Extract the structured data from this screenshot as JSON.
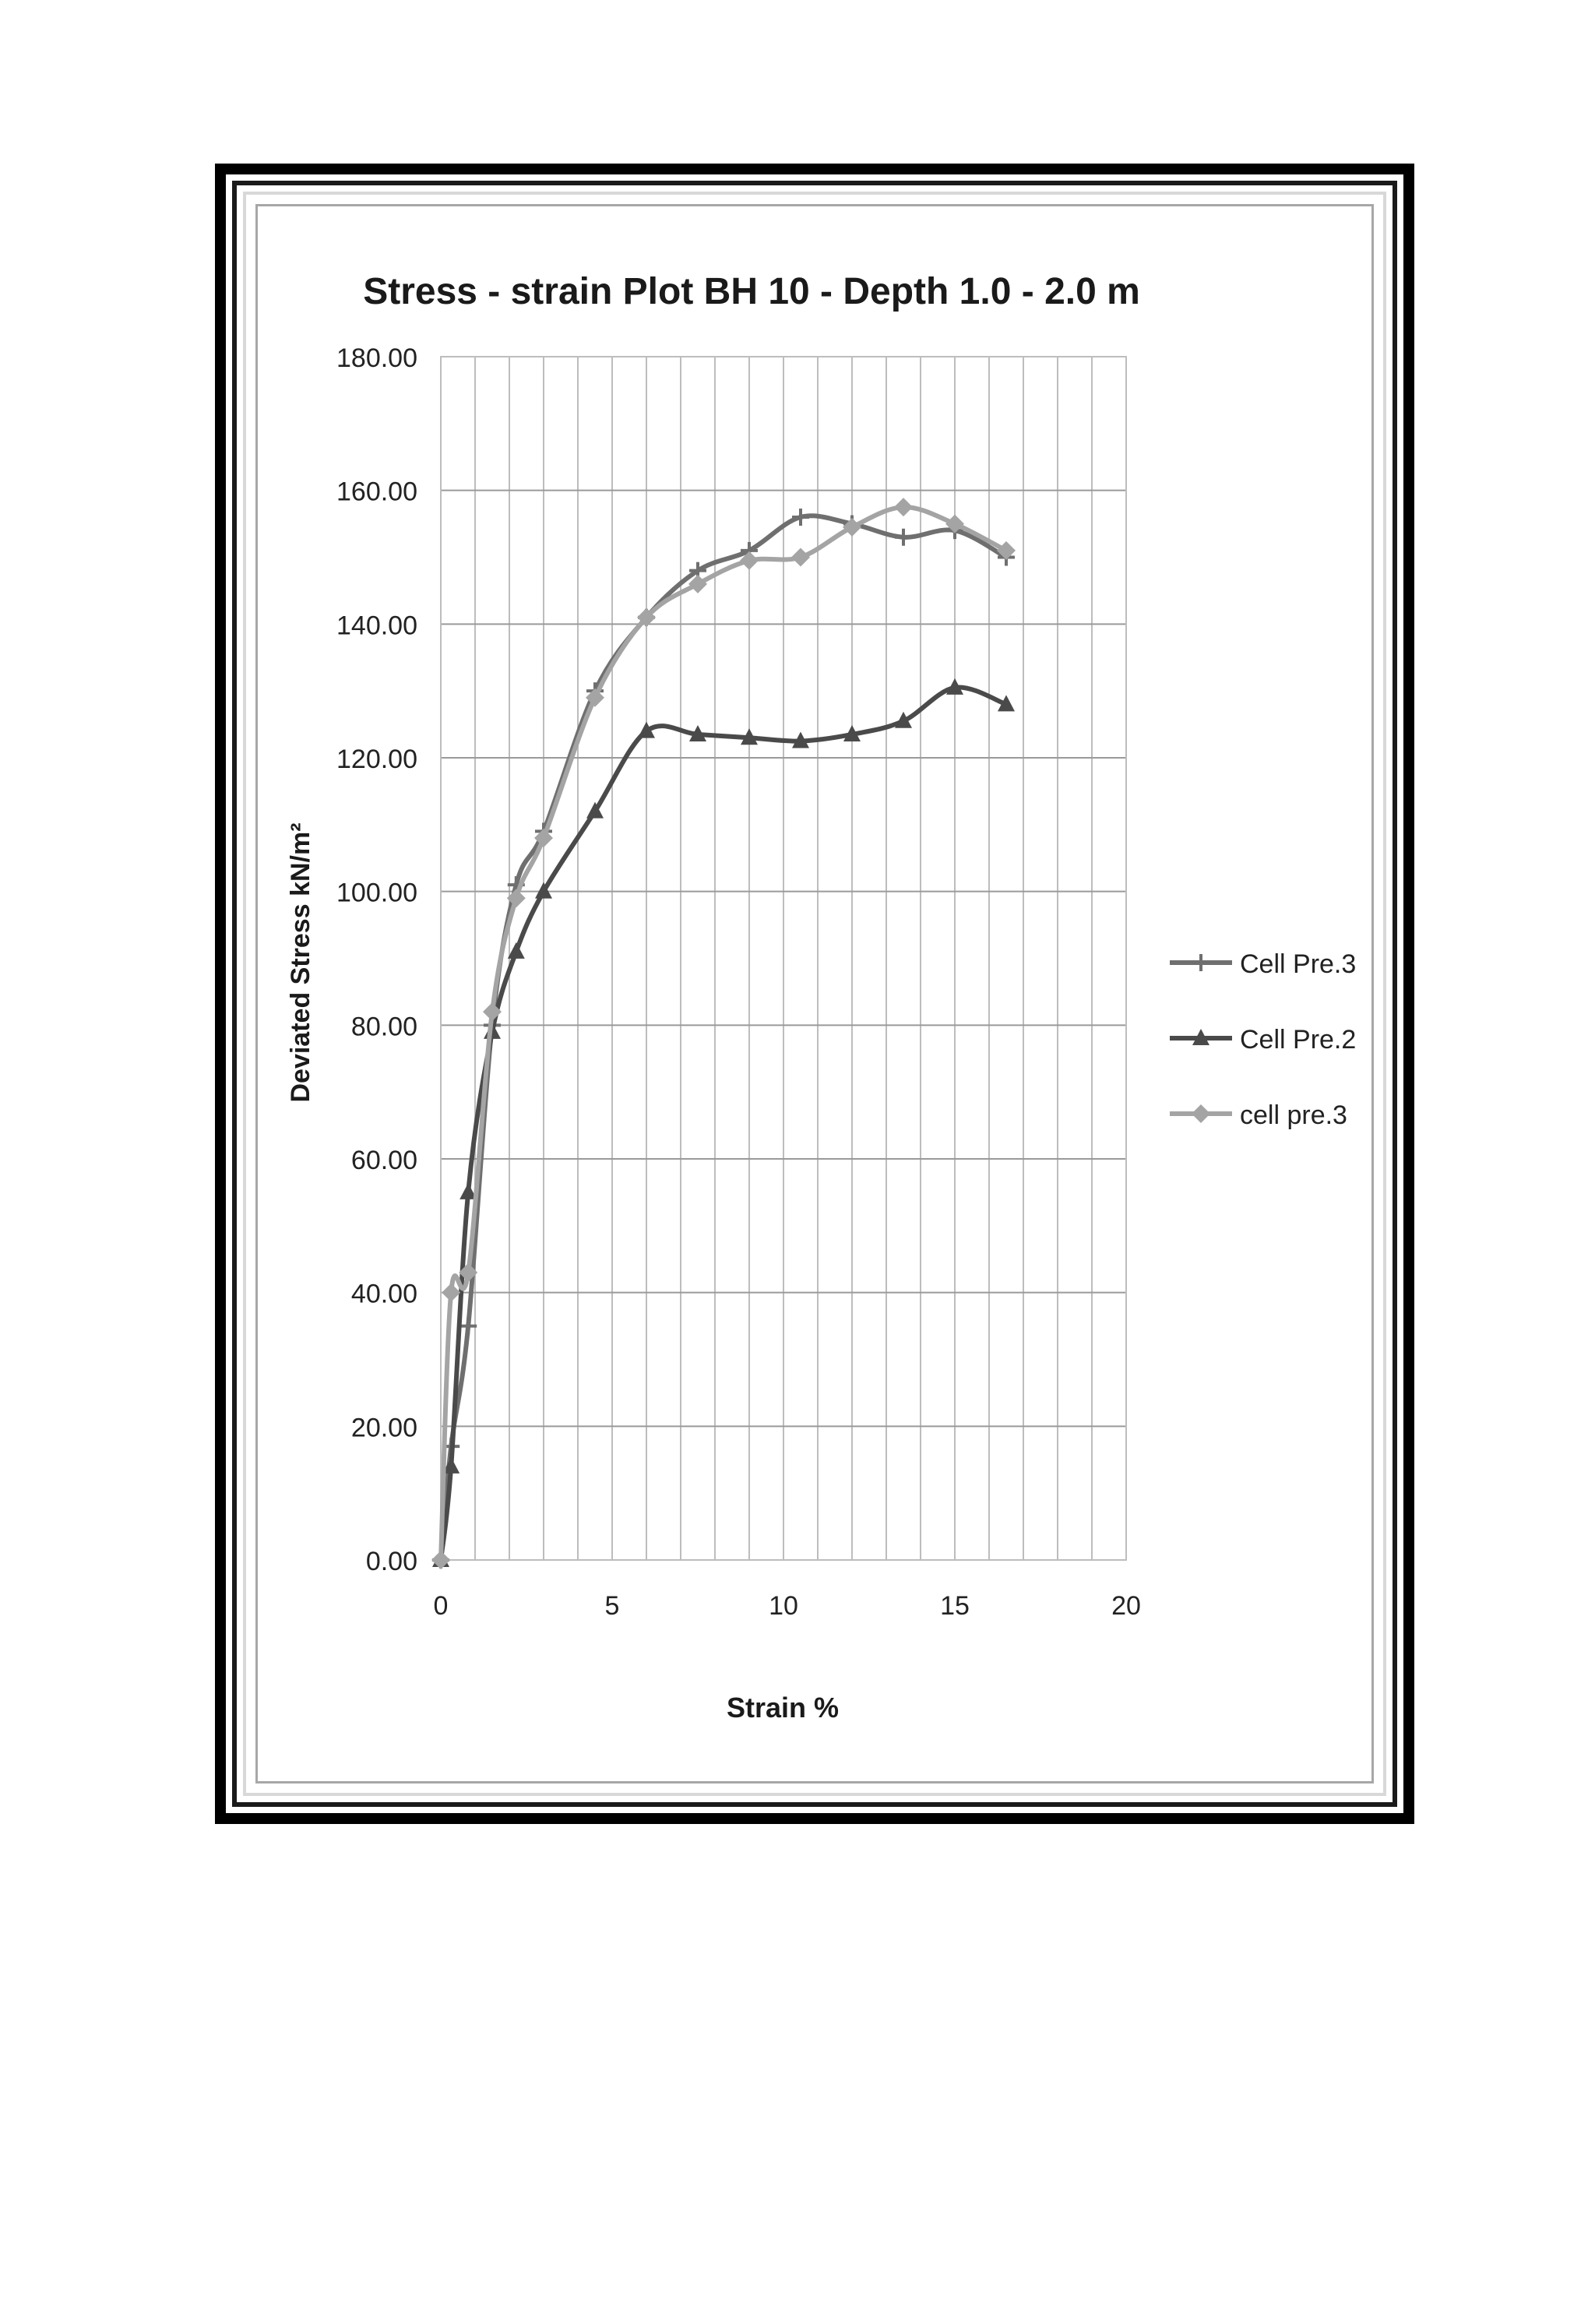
{
  "chart_data": {
    "type": "line",
    "title": "Stress - strain Plot BH 10 - Depth 1.0 - 2.0 m",
    "xlabel": "Strain %",
    "ylabel": "Deviated Stress kN/m²",
    "xlim": [
      0,
      20
    ],
    "ylim": [
      0,
      180
    ],
    "x_ticks": [
      "0",
      "5",
      "10",
      "15",
      "20"
    ],
    "y_ticks": [
      "0.00",
      "20.00",
      "40.00",
      "60.00",
      "80.00",
      "100.00",
      "120.00",
      "140.00",
      "160.00",
      "180.00"
    ],
    "grid": true,
    "legend_position": "right",
    "series": [
      {
        "name": "Cell Pre.3",
        "marker": "plus",
        "color": "#6f6f6f",
        "x": [
          0,
          0.3,
          0.8,
          1.5,
          2.2,
          3.0,
          4.5,
          6.0,
          7.5,
          9.0,
          10.5,
          12.0,
          13.5,
          15.0,
          16.5
        ],
        "y": [
          0,
          17,
          35,
          80,
          101,
          109,
          130,
          141,
          148,
          151,
          156,
          155,
          153,
          154,
          150
        ]
      },
      {
        "name": "Cell Pre.2",
        "marker": "triangle",
        "color": "#4a4a4a",
        "x": [
          0,
          0.3,
          0.8,
          1.5,
          2.2,
          3.0,
          4.5,
          6.0,
          7.5,
          9.0,
          10.5,
          12.0,
          13.5,
          15.0,
          16.5
        ],
        "y": [
          0,
          14,
          55,
          79,
          91,
          100,
          112,
          124,
          123.5,
          123,
          122.5,
          123.5,
          125.5,
          130.5,
          128
        ]
      },
      {
        "name": "cell pre.3",
        "marker": "diamond",
        "color": "#a4a4a4",
        "x": [
          0,
          0.3,
          0.8,
          1.5,
          2.2,
          3.0,
          4.5,
          6.0,
          7.5,
          9.0,
          10.5,
          12.0,
          13.5,
          15.0,
          16.5
        ],
        "y": [
          0,
          40,
          43,
          82,
          99,
          108,
          129,
          141,
          146,
          149.5,
          150,
          154.5,
          157.5,
          155,
          151
        ]
      }
    ]
  }
}
